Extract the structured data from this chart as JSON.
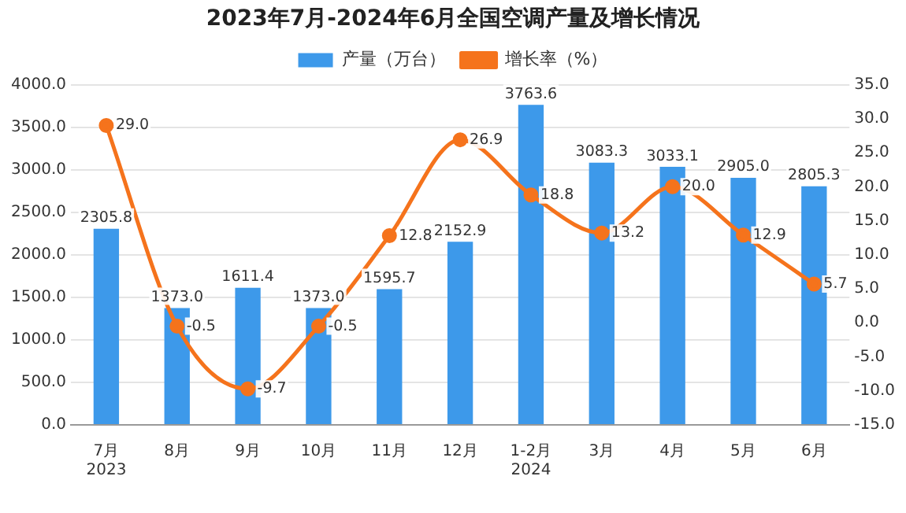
{
  "chart_data": {
    "type": "bar",
    "title": "2023年7月-2024年6月全国空调产量及增长情况",
    "categories": [
      "7月\n2023",
      "8月",
      "9月",
      "10月",
      "11月",
      "12月",
      "1-2月\n2024",
      "3月",
      "4月",
      "5月",
      "6月"
    ],
    "series": [
      {
        "name": "产量（万台）",
        "color": "#3d99ea",
        "values": [
          2305.8,
          1373.0,
          1611.4,
          1373.0,
          1595.7,
          2152.9,
          3763.6,
          3083.3,
          3033.1,
          2905.0,
          2805.3
        ],
        "value_labels": [
          "2305.8",
          "1373.0",
          "1611.4",
          "1373.0",
          "1595.7",
          "2152.9",
          "3763.6",
          "3083.3",
          "3033.1",
          "2905.0",
          "2805.3"
        ]
      },
      {
        "name": "增长率（%）",
        "type": "line",
        "axis": "y2",
        "color": "#f5731c",
        "values": [
          29.0,
          -0.5,
          -9.7,
          -0.5,
          12.8,
          26.9,
          18.8,
          13.2,
          20.0,
          12.9,
          5.7
        ],
        "value_labels": [
          "29.0",
          "-0.5",
          "-9.7",
          "-0.5",
          "12.8",
          "26.9",
          "18.8",
          "13.2",
          "20.0",
          "12.9",
          "5.7"
        ]
      }
    ],
    "ylim": [
      0,
      4000
    ],
    "yticks": [
      {
        "value": 0,
        "label": "0.0"
      },
      {
        "value": 500,
        "label": "500.0"
      },
      {
        "value": 1000,
        "label": "1000.0"
      },
      {
        "value": 1500,
        "label": "1500.0"
      },
      {
        "value": 2000,
        "label": "2000.0"
      },
      {
        "value": 2500,
        "label": "2500.0"
      },
      {
        "value": 3000,
        "label": "3000.0"
      },
      {
        "value": 3500,
        "label": "3500.0"
      },
      {
        "value": 4000,
        "label": "4000.0"
      }
    ],
    "y2lim": [
      -15,
      35
    ],
    "y2ticks": [
      {
        "value": -15,
        "label": "-15.0"
      },
      {
        "value": -10,
        "label": "-10.0"
      },
      {
        "value": -5,
        "label": "-5.0"
      },
      {
        "value": 0,
        "label": "0.0"
      },
      {
        "value": 5,
        "label": "5.0"
      },
      {
        "value": 10,
        "label": "10.0"
      },
      {
        "value": 15,
        "label": "15.0"
      },
      {
        "value": 20,
        "label": "20.0"
      },
      {
        "value": 25,
        "label": "25.0"
      },
      {
        "value": 30,
        "label": "30.0"
      },
      {
        "value": 35,
        "label": "35.0"
      }
    ],
    "grid": "y",
    "legend": "top",
    "marker": "circle",
    "line_style": "solid"
  }
}
